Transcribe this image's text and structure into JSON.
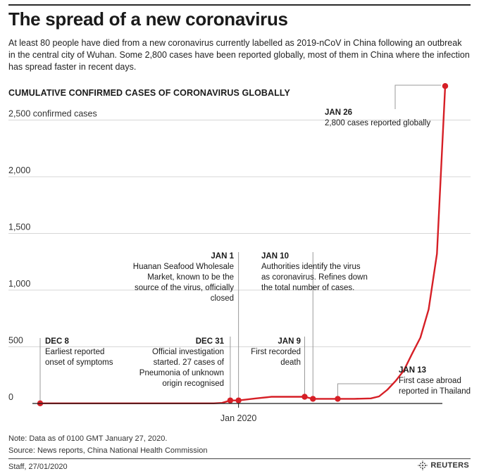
{
  "header": {
    "title": "The spread of a new coronavirus",
    "intro": "At least 80 people have died from a new coronavirus currently labelled as 2019-nCoV in China following an outbreak in the central city of Wuhan. Some 2,800 cases have been reported globally, most of them in China where the infection has spread faster in recent days."
  },
  "colors": {
    "line": "#d61f26",
    "grid": "#d7d7d7",
    "baseline": "#1a1a1a",
    "leader": "#9a9a9a"
  },
  "chart_data": {
    "type": "line",
    "title": "CUMULATIVE CONFIRMED CASES OF CORONAVIRUS GLOBALLY",
    "unit_label": "2,500 confirmed cases",
    "xlabel": "",
    "ylabel": "",
    "ylim": [
      0,
      2800
    ],
    "x_tick_label": "Jan 2020",
    "y_ticks": [
      {
        "value": 0,
        "label": "0"
      },
      {
        "value": 500,
        "label": "500"
      },
      {
        "value": 1000,
        "label": "1,000"
      },
      {
        "value": 1500,
        "label": "1,500"
      },
      {
        "value": 2000,
        "label": "2,000"
      },
      {
        "value": 2500,
        "label": "2,500 confirmed cases"
      }
    ],
    "series": [
      {
        "x": [
          "2019-12-08",
          "2019-12-15",
          "2019-12-22",
          "2019-12-29",
          "2019-12-30",
          "2019-12-31",
          "2020-01-01",
          "2020-01-03",
          "2020-01-05",
          "2020-01-07",
          "2020-01-09",
          "2020-01-10",
          "2020-01-11",
          "2020-01-13",
          "2020-01-15",
          "2020-01-17",
          "2020-01-18",
          "2020-01-19",
          "2020-01-20",
          "2020-01-21",
          "2020-01-22",
          "2020-01-23",
          "2020-01-24",
          "2020-01-25",
          "2020-01-26"
        ],
        "values": [
          1,
          1,
          1,
          1,
          5,
          27,
          27,
          44,
          59,
          59,
          59,
          41,
          41,
          41,
          41,
          45,
          62,
          121,
          198,
          291,
          440,
          581,
          830,
          1320,
          2800
        ]
      }
    ],
    "markers": [
      "2019-12-08",
      "2019-12-31",
      "2020-01-01",
      "2020-01-09",
      "2020-01-10",
      "2020-01-13",
      "2020-01-26"
    ],
    "annotations": [
      {
        "date": "DEC 8",
        "text": [
          "Earliest reported",
          "onset of symptoms"
        ]
      },
      {
        "date": "DEC 31",
        "text": [
          "Official investigation",
          "started. 27 cases of",
          "Pneumonia of unknown",
          "origin recognised"
        ]
      },
      {
        "date": "JAN 1",
        "text": [
          "Huanan Seafood Wholesale",
          "Market, known to be the",
          "source of the virus, officially",
          "closed"
        ]
      },
      {
        "date": "JAN 10",
        "text": [
          "Authorities identify the virus",
          "as coronavirus. Refines down",
          "the total number of cases."
        ]
      },
      {
        "date": "JAN 9",
        "text": [
          "First recorded",
          "death"
        ]
      },
      {
        "date": "JAN 13",
        "text": [
          "First case abroad",
          "reported in Thailand"
        ]
      },
      {
        "date": "JAN 26",
        "text": [
          "2,800 cases reported globally"
        ]
      }
    ]
  },
  "footer": {
    "note": "Note: Data as of 0100 GMT January 27, 2020.",
    "source": "Source: News reports, China National Health Commission",
    "credit": "Staff,  27/01/2020",
    "brand": "REUTERS"
  }
}
